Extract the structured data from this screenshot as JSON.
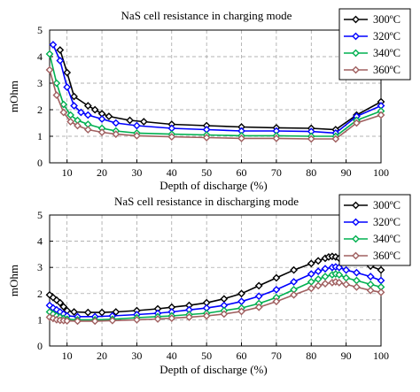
{
  "chart_data": [
    {
      "type": "line",
      "title": "NaS cell resistance in charging mode",
      "xlabel": "Depth of discharge (%)",
      "ylabel": "mOhm",
      "xlim": [
        5,
        100
      ],
      "ylim": [
        0,
        5
      ],
      "xticks": [
        "10",
        "20",
        "30",
        "40",
        "50",
        "60",
        "70",
        "80",
        "90",
        "100"
      ],
      "yticks": [
        "0",
        "1",
        "2",
        "3",
        "4",
        "5"
      ],
      "grid": true,
      "legend_position": "top-right",
      "series": [
        {
          "name": "300ºC",
          "color": "#000000",
          "marker_fill": "#ffffff",
          "x": [
            8,
            10,
            12,
            16,
            18,
            20,
            22,
            28,
            32,
            40,
            50,
            60,
            70,
            80,
            87,
            93,
            100
          ],
          "y": [
            4.25,
            3.4,
            2.5,
            2.15,
            2.0,
            1.85,
            1.75,
            1.6,
            1.55,
            1.45,
            1.4,
            1.35,
            1.32,
            1.3,
            1.25,
            1.8,
            2.3
          ]
        },
        {
          "name": "320ºC",
          "color": "#0000ff",
          "marker_fill": "#ffffff",
          "x": [
            6,
            8,
            10,
            12,
            14,
            16,
            20,
            24,
            30,
            40,
            50,
            60,
            70,
            80,
            87,
            93,
            100
          ],
          "y": [
            4.45,
            3.85,
            2.85,
            2.15,
            1.9,
            1.8,
            1.65,
            1.5,
            1.4,
            1.3,
            1.25,
            1.2,
            1.2,
            1.18,
            1.12,
            1.75,
            2.15
          ]
        },
        {
          "name": "340ºC",
          "color": "#00b050",
          "marker_fill": "#ffffff",
          "x": [
            5,
            7,
            9,
            11,
            13,
            16,
            20,
            24,
            30,
            40,
            50,
            60,
            70,
            80,
            87,
            93,
            100
          ],
          "y": [
            4.1,
            3.0,
            2.2,
            1.8,
            1.6,
            1.45,
            1.3,
            1.2,
            1.12,
            1.08,
            1.05,
            1.02,
            1.02,
            1.0,
            1.0,
            1.6,
            1.95
          ]
        },
        {
          "name": "360ºC",
          "color": "#a06060",
          "marker_fill": "#ffffff",
          "x": [
            5,
            7,
            9,
            11,
            13,
            16,
            20,
            24,
            30,
            40,
            50,
            60,
            70,
            80,
            87,
            93,
            100
          ],
          "y": [
            3.5,
            2.55,
            1.9,
            1.55,
            1.4,
            1.25,
            1.15,
            1.08,
            1.02,
            0.98,
            0.95,
            0.92,
            0.92,
            0.9,
            0.9,
            1.5,
            1.8
          ]
        }
      ]
    },
    {
      "type": "line",
      "title": "NaS cell resistance in discharging mode",
      "xlabel": "Depth of discharge (%)",
      "ylabel": "mOhm",
      "xlim": [
        5,
        100
      ],
      "ylim": [
        0,
        5
      ],
      "xticks": [
        "10",
        "20",
        "30",
        "40",
        "50",
        "60",
        "70",
        "80",
        "90",
        "100"
      ],
      "yticks": [
        "0",
        "1",
        "2",
        "3",
        "4",
        "5"
      ],
      "grid": true,
      "legend_position": "top-right",
      "series": [
        {
          "name": "300ºC",
          "color": "#000000",
          "marker_fill": "#ffffff",
          "x": [
            5,
            6,
            7,
            8,
            9,
            10,
            12,
            16,
            20,
            24,
            30,
            36,
            40,
            45,
            50,
            55,
            60,
            65,
            70,
            75,
            80,
            82,
            84,
            85,
            86,
            87,
            88,
            90,
            93,
            97,
            100
          ],
          "y": [
            1.95,
            1.85,
            1.75,
            1.65,
            1.5,
            1.35,
            1.3,
            1.28,
            1.28,
            1.3,
            1.35,
            1.42,
            1.48,
            1.55,
            1.65,
            1.8,
            2.0,
            2.3,
            2.6,
            2.9,
            3.15,
            3.25,
            3.35,
            3.4,
            3.42,
            3.4,
            3.35,
            3.3,
            3.2,
            3.05,
            2.9
          ]
        },
        {
          "name": "320ºC",
          "color": "#0000ff",
          "marker_fill": "#ffffff",
          "x": [
            5,
            6,
            7,
            8,
            9,
            10,
            13,
            18,
            23,
            30,
            36,
            40,
            45,
            50,
            55,
            60,
            65,
            70,
            75,
            80,
            82,
            84,
            86,
            87,
            88,
            90,
            93,
            97,
            100
          ],
          "y": [
            1.55,
            1.45,
            1.38,
            1.3,
            1.22,
            1.15,
            1.12,
            1.12,
            1.15,
            1.2,
            1.25,
            1.3,
            1.38,
            1.45,
            1.55,
            1.7,
            1.9,
            2.15,
            2.45,
            2.75,
            2.85,
            2.95,
            3.0,
            3.02,
            3.0,
            2.9,
            2.8,
            2.65,
            2.5
          ]
        },
        {
          "name": "340ºC",
          "color": "#00b050",
          "marker_fill": "#ffffff",
          "x": [
            5,
            6,
            7,
            8,
            9,
            10,
            13,
            18,
            23,
            30,
            36,
            40,
            45,
            50,
            55,
            60,
            65,
            70,
            75,
            80,
            82,
            84,
            86,
            87,
            88,
            90,
            93,
            97,
            100
          ],
          "y": [
            1.3,
            1.22,
            1.15,
            1.1,
            1.05,
            1.02,
            1.0,
            1.0,
            1.02,
            1.08,
            1.12,
            1.15,
            1.2,
            1.25,
            1.35,
            1.45,
            1.62,
            1.85,
            2.15,
            2.45,
            2.55,
            2.65,
            2.72,
            2.75,
            2.72,
            2.6,
            2.5,
            2.35,
            2.25
          ]
        },
        {
          "name": "360ºC",
          "color": "#a06060",
          "marker_fill": "#ffffff",
          "x": [
            5,
            6,
            7,
            8,
            9,
            10,
            13,
            18,
            23,
            30,
            36,
            40,
            45,
            50,
            55,
            60,
            65,
            70,
            75,
            80,
            82,
            84,
            86,
            87,
            88,
            90,
            93,
            97,
            100
          ],
          "y": [
            1.1,
            1.05,
            1.0,
            0.98,
            0.97,
            0.96,
            0.95,
            0.95,
            0.97,
            1.0,
            1.03,
            1.06,
            1.1,
            1.15,
            1.22,
            1.32,
            1.48,
            1.7,
            1.95,
            2.2,
            2.3,
            2.38,
            2.42,
            2.45,
            2.42,
            2.35,
            2.25,
            2.12,
            2.05
          ]
        }
      ]
    }
  ]
}
